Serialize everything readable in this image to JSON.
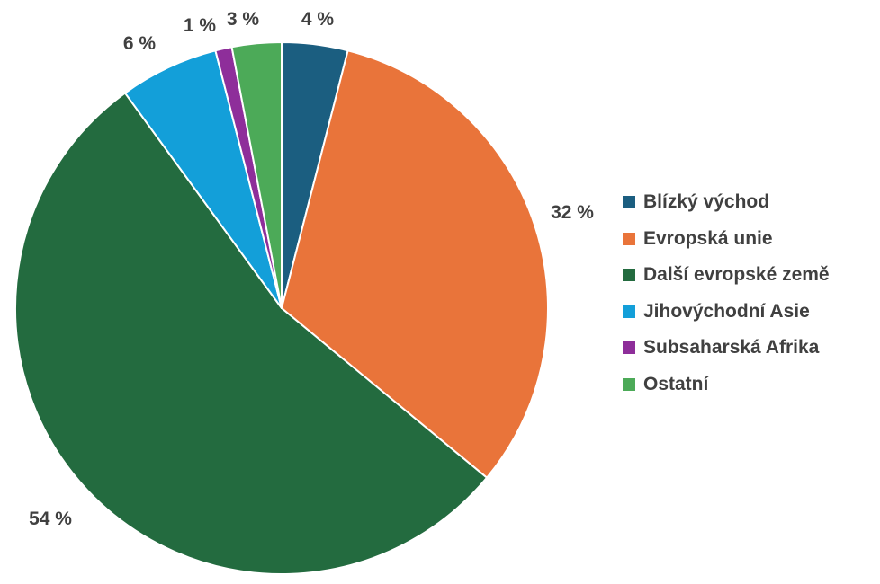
{
  "chart_data": {
    "type": "pie",
    "title": "",
    "legend_position": "right",
    "slices": [
      {
        "label": "Blízký východ",
        "value": 4,
        "value_label": "4 %",
        "color": "#1b5e80"
      },
      {
        "label": "Evropská unie",
        "value": 32,
        "value_label": "32 %",
        "color": "#e9743a"
      },
      {
        "label": "Další evropské země",
        "value": 54,
        "value_label": "54 %",
        "color": "#236b3f"
      },
      {
        "label": "Jihovýchodní Asie",
        "value": 6,
        "value_label": "6 %",
        "color": "#139fd9"
      },
      {
        "label": "Subsaharská Afrika",
        "value": 1,
        "value_label": "1 %",
        "color": "#8e2e9a"
      },
      {
        "label": "Ostatní",
        "value": 3,
        "value_label": "3 %",
        "color": "#4caa58"
      }
    ]
  }
}
